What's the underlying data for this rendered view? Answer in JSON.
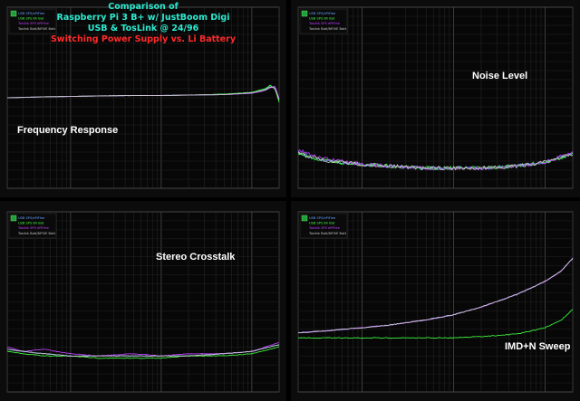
{
  "header": {
    "lines": [
      "Comparison of",
      "Raspberry Pi 3 B+ w/ JustBoom Digi",
      "USB & TosLink @ 24/96",
      "Switching Power Supply vs. Li Battery"
    ]
  },
  "legend_entries": [
    "USB SPS/ePiFlee",
    "USB SPS Bh Bat",
    "Toslink SPS ePiFlee",
    "Toslink Batt/NFIVE Batt"
  ],
  "panels": [
    {
      "id": "freq",
      "label": "Frequency Response"
    },
    {
      "id": "noise",
      "label": "Noise Level"
    },
    {
      "id": "crosstalk",
      "label": "Stereo Crosstalk"
    },
    {
      "id": "imd",
      "label": "IMD+N Sweep"
    }
  ],
  "colors": {
    "background": "#000000",
    "grid": "#2e2e2e",
    "title": "#2ee9d0",
    "subtitle_red": "#ff2a2a",
    "series": [
      "#66a3ff",
      "#40ff40",
      "#c040ff",
      "#c8c8c8"
    ]
  },
  "chart_data": [
    {
      "type": "line",
      "panel": "freq",
      "x_scale": "log",
      "x_range": [
        20,
        20000
      ],
      "ylim": [
        -2,
        2
      ],
      "x": [
        20,
        50,
        100,
        200,
        500,
        1000,
        2000,
        5000,
        10000,
        14000,
        16000,
        18000,
        20000
      ],
      "series": [
        {
          "name": "USB SPS/ePiFlee",
          "values": [
            0,
            0.02,
            0.03,
            0.04,
            0.05,
            0.05,
            0.06,
            0.07,
            0.1,
            0.18,
            0.25,
            0.22,
            -0.05
          ]
        },
        {
          "name": "USB SPS Bh Bat",
          "values": [
            0,
            0.02,
            0.03,
            0.04,
            0.05,
            0.05,
            0.06,
            0.08,
            0.12,
            0.2,
            0.28,
            0.2,
            -0.1
          ]
        },
        {
          "name": "Toslink SPS ePiFlee",
          "values": [
            0,
            0.02,
            0.03,
            0.04,
            0.05,
            0.05,
            0.06,
            0.07,
            0.1,
            0.16,
            0.22,
            0.26,
            -0.02
          ]
        },
        {
          "name": "Toslink Batt/NFIVE Batt",
          "values": [
            0,
            0.02,
            0.03,
            0.04,
            0.05,
            0.05,
            0.06,
            0.07,
            0.11,
            0.17,
            0.24,
            0.21,
            -0.04
          ]
        }
      ]
    },
    {
      "type": "line",
      "panel": "noise",
      "x_scale": "log",
      "x_range": [
        20,
        20000
      ],
      "ylim": [
        -150,
        -60
      ],
      "x": [
        20,
        30,
        50,
        100,
        200,
        500,
        1000,
        2000,
        5000,
        10000,
        20000
      ],
      "series": [
        {
          "name": "USB SPS/ePiFlee",
          "values": [
            -132,
            -135,
            -137,
            -138,
            -139,
            -140,
            -140,
            -140,
            -139,
            -137,
            -133
          ]
        },
        {
          "name": "USB SPS Bh Bat",
          "values": [
            -133,
            -135,
            -137,
            -138,
            -139,
            -140,
            -140,
            -140,
            -139,
            -137,
            -133
          ]
        },
        {
          "name": "Toslink SPS ePiFlee",
          "values": [
            -131,
            -134,
            -136,
            -138,
            -139,
            -140,
            -140,
            -140,
            -139,
            -137,
            -132
          ]
        },
        {
          "name": "Toslink Batt/NFIVE Batt",
          "values": [
            -132,
            -135,
            -137,
            -138,
            -139,
            -140,
            -140,
            -140,
            -139,
            -137,
            -133
          ]
        }
      ]
    },
    {
      "type": "line",
      "panel": "crosstalk",
      "x_scale": "log",
      "x_range": [
        20,
        20000
      ],
      "ylim": [
        -140,
        -60
      ],
      "x": [
        20,
        30,
        50,
        100,
        200,
        500,
        1000,
        2000,
        5000,
        10000,
        20000
      ],
      "series": [
        {
          "name": "USB SPS/ePiFlee",
          "values": [
            -121,
            -122,
            -123,
            -124,
            -124,
            -124,
            -124,
            -124,
            -123,
            -122,
            -119
          ]
        },
        {
          "name": "USB SPS Bh Bat",
          "values": [
            -122,
            -123,
            -124,
            -124,
            -125,
            -125,
            -125,
            -124,
            -124,
            -123,
            -120
          ]
        },
        {
          "name": "Toslink SPS ePiFlee",
          "values": [
            -120,
            -122,
            -121,
            -123,
            -124,
            -123,
            -124,
            -123,
            -123,
            -122,
            -118
          ]
        },
        {
          "name": "Toslink Batt/NFIVE Batt",
          "values": [
            -121,
            -122,
            -123,
            -124,
            -124,
            -124,
            -124,
            -124,
            -123,
            -122,
            -119
          ]
        }
      ]
    },
    {
      "type": "line",
      "panel": "imd",
      "x_scale": "log",
      "x_range": [
        20,
        20000
      ],
      "ylim": [
        -130,
        -60
      ],
      "x": [
        20,
        50,
        100,
        200,
        500,
        1000,
        2000,
        5000,
        10000,
        15000,
        20000
      ],
      "series": [
        {
          "name": "USB SPS/ePiFlee",
          "values": [
            -107,
            -106,
            -105,
            -104,
            -102,
            -100,
            -97,
            -92,
            -87,
            -83,
            -78
          ]
        },
        {
          "name": "USB SPS Bh Bat",
          "values": [
            -109,
            -109,
            -109,
            -109,
            -109,
            -109,
            -108.5,
            -107.5,
            -105,
            -102,
            -98
          ]
        },
        {
          "name": "Toslink SPS ePiFlee",
          "values": [
            -107,
            -106,
            -105,
            -104,
            -102,
            -100,
            -97,
            -92,
            -87,
            -83,
            -78
          ]
        },
        {
          "name": "Toslink Batt/NFIVE Batt",
          "values": [
            -107,
            -106,
            -105,
            -104,
            -102,
            -100,
            -97,
            -92,
            -87,
            -83,
            -78
          ]
        }
      ]
    }
  ]
}
